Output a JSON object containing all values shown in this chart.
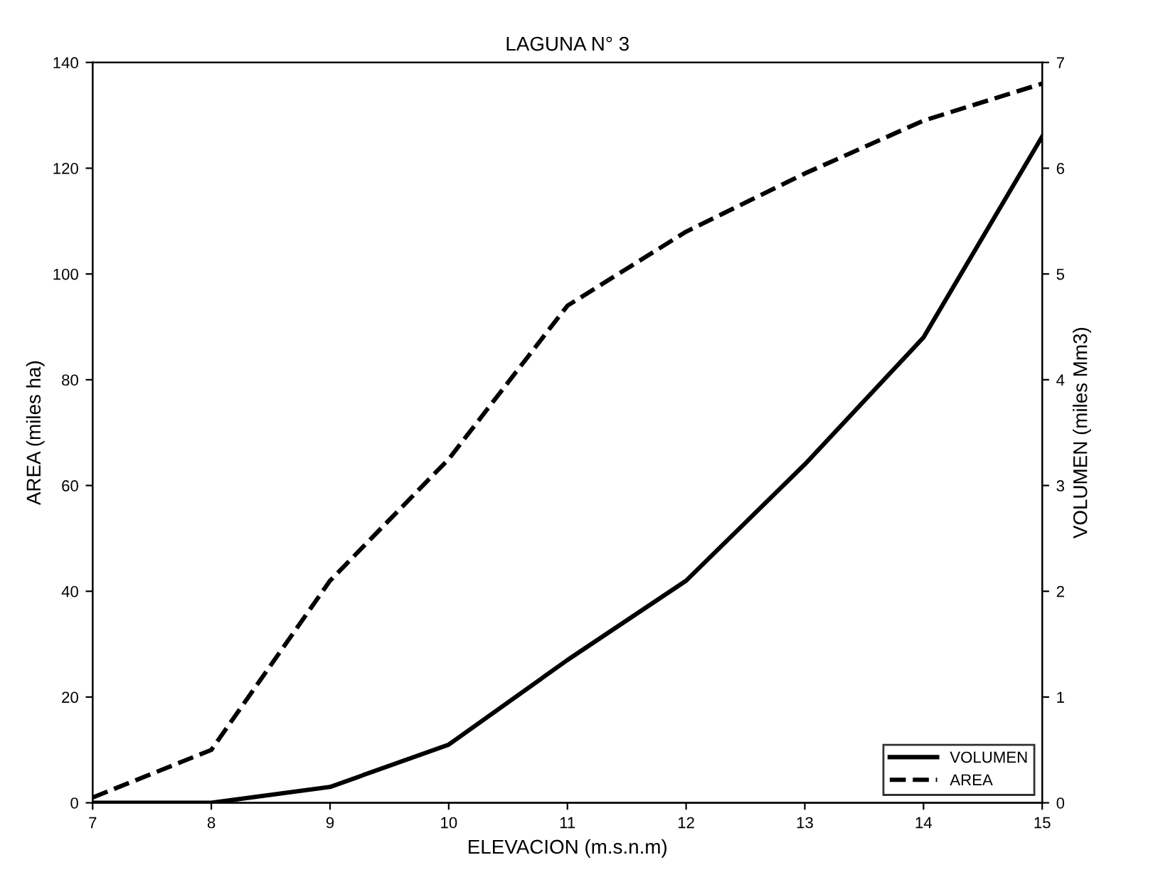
{
  "chart_data": {
    "type": "line",
    "title": "LAGUNA N° 3",
    "xlabel": "ELEVACION (m.s.n.m)",
    "ylabel": "AREA (miles ha)",
    "y2label": "VOLUMEN (miles Mm3)",
    "x": [
      7,
      8,
      9,
      10,
      11,
      12,
      13,
      14,
      15
    ],
    "series": [
      {
        "name": "VOLUMEN",
        "color": "#000000",
        "line_style": "solid",
        "axis": "y2",
        "values": [
          0,
          0.0,
          0.15,
          0.55,
          1.35,
          2.1,
          3.2,
          4.4,
          6.3
        ]
      },
      {
        "name": "AREA",
        "color": "#000000",
        "line_style": "dashed",
        "values": [
          1,
          10,
          42,
          65,
          94,
          108,
          119,
          129,
          136
        ]
      }
    ],
    "xlim": [
      7,
      15
    ],
    "xticks": [
      7,
      8,
      9,
      10,
      11,
      12,
      13,
      14,
      15
    ],
    "ylim": [
      0,
      140
    ],
    "yticks": [
      0,
      20,
      40,
      60,
      80,
      100,
      120,
      140
    ],
    "y2lim": [
      0,
      7
    ],
    "y2ticks": [
      0,
      1,
      2,
      3,
      4,
      5,
      6,
      7
    ],
    "legend": "bottom right",
    "grid": false,
    "marker": "none"
  }
}
